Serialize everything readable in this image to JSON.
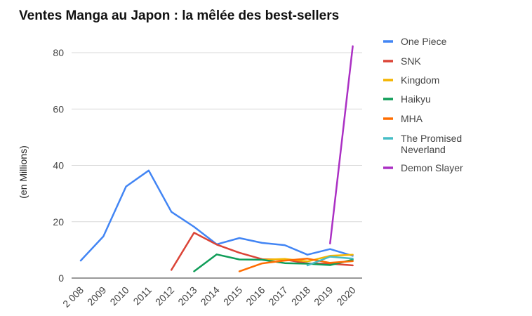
{
  "chart_data": {
    "type": "line",
    "title": "Ventes Manga au Japon : la mêlée des best-sellers",
    "xlabel": "",
    "ylabel": "(en Millions)",
    "ylim": [
      0,
      85
    ],
    "yticks": [
      0,
      20,
      40,
      60,
      80
    ],
    "grid": true,
    "legend": "right",
    "x": [
      "2008",
      "2009",
      "2010",
      "2011",
      "2012",
      "2013",
      "2014",
      "2015",
      "2016",
      "2017",
      "2018",
      "2019",
      "2020"
    ],
    "series": [
      {
        "name": "One Piece",
        "color": "#4285f4",
        "values": [
          6.2,
          14.8,
          32.5,
          38.2,
          23.5,
          18.2,
          12.0,
          14.2,
          12.5,
          11.7,
          8.3,
          10.3,
          7.9
        ]
      },
      {
        "name": "SNK",
        "color": "#db4437",
        "values": [
          null,
          null,
          null,
          null,
          2.9,
          16.1,
          11.9,
          9.0,
          6.7,
          6.6,
          5.2,
          5.1,
          4.5
        ]
      },
      {
        "name": "Kingdom",
        "color": "#f4b400",
        "values": [
          null,
          null,
          null,
          null,
          null,
          null,
          null,
          null,
          6.5,
          6.8,
          5.9,
          7.9,
          8.3
        ]
      },
      {
        "name": "Haikyu",
        "color": "#0f9d58",
        "values": [
          null,
          null,
          null,
          null,
          null,
          2.4,
          8.4,
          6.6,
          6.5,
          5.3,
          5.1,
          4.6,
          6.5
        ]
      },
      {
        "name": "MHA",
        "color": "#ff6d00",
        "values": [
          null,
          null,
          null,
          null,
          null,
          null,
          null,
          2.4,
          5.2,
          6.2,
          6.9,
          5.4,
          6.0
        ]
      },
      {
        "name": "The Promised Neverland",
        "color": "#46bdc6",
        "values": [
          null,
          null,
          null,
          null,
          null,
          null,
          null,
          null,
          null,
          null,
          4.5,
          7.6,
          6.9
        ]
      },
      {
        "name": "Demon Slayer",
        "color": "#ab30c4",
        "values": [
          null,
          null,
          null,
          null,
          null,
          null,
          null,
          null,
          null,
          null,
          null,
          12.3,
          82.3
        ]
      }
    ],
    "legend_labels": [
      {
        "lines": [
          "One Piece"
        ]
      },
      {
        "lines": [
          "SNK"
        ]
      },
      {
        "lines": [
          "Kingdom"
        ]
      },
      {
        "lines": [
          "Haikyu"
        ]
      },
      {
        "lines": [
          "MHA"
        ]
      },
      {
        "lines": [
          "The Promised",
          "Neverland"
        ]
      },
      {
        "lines": [
          "Demon Slayer"
        ]
      }
    ],
    "x_tick_labels": [
      "2 008",
      "2009",
      "2010",
      "2011",
      "2012",
      "2013",
      "2014",
      "2015",
      "2016",
      "2017",
      "2018",
      "2019",
      "2020"
    ]
  }
}
